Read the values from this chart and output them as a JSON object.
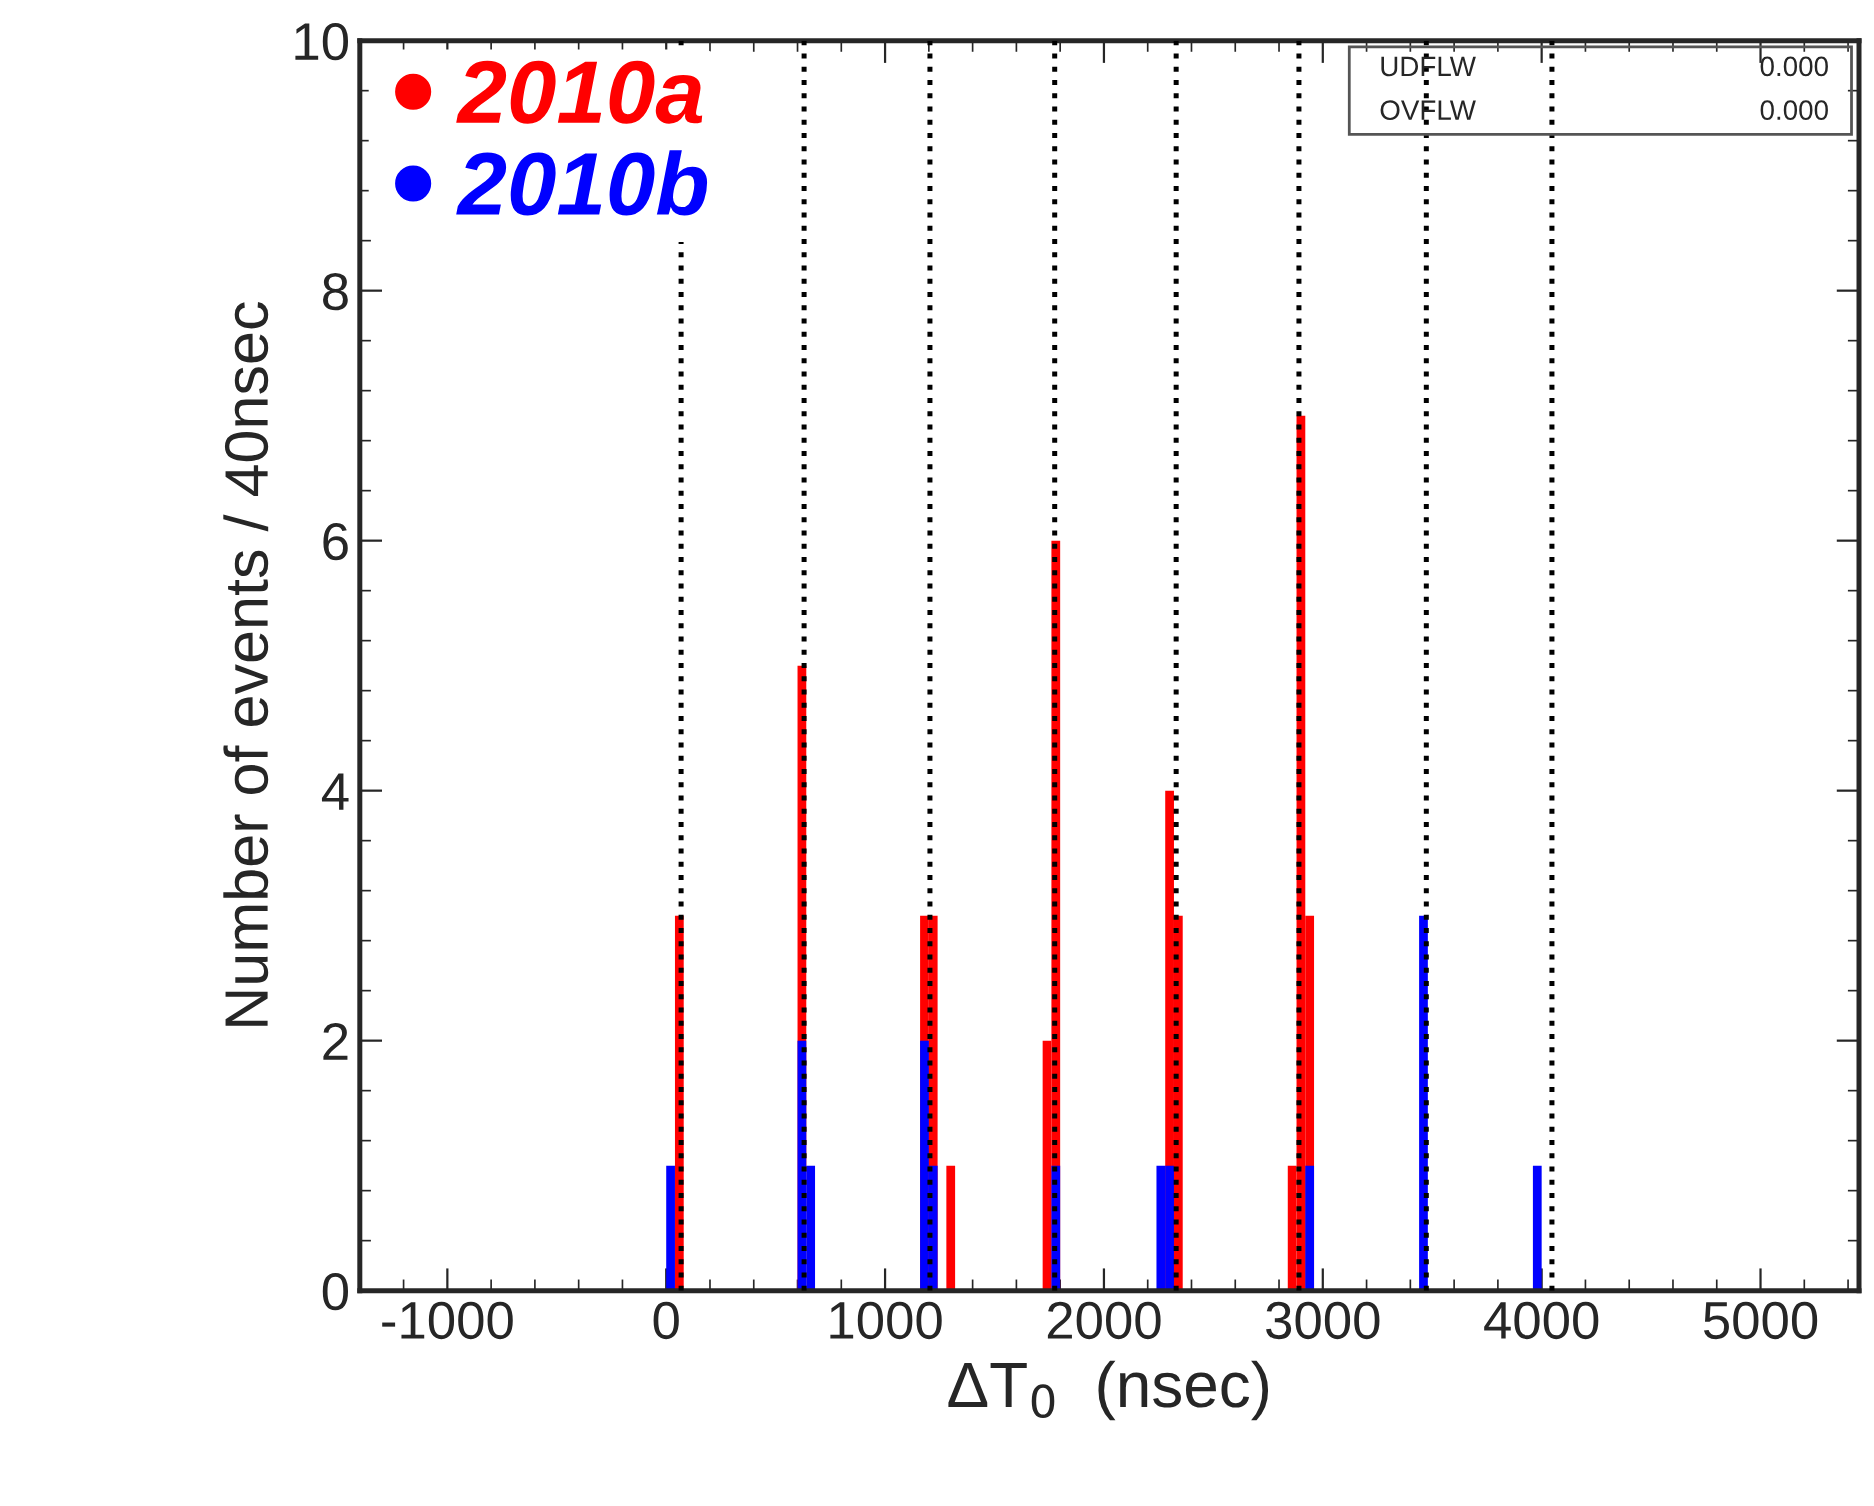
{
  "chart_data": {
    "type": "histogram",
    "xlabel": "ΔT$_{0}$  (nsec)",
    "ylabel": "Number of events / 40nsec",
    "bins": [
      0,
      40,
      80,
      120,
      160,
      200,
      240,
      280,
      320,
      360,
      400,
      440,
      480,
      520,
      560,
      600,
      640,
      680,
      720,
      760,
      800,
      840,
      880,
      920,
      960,
      1000,
      1040,
      1080,
      1120,
      1160,
      1200,
      1240,
      1280,
      1320,
      1360,
      1400,
      1440,
      1480,
      1520,
      1560,
      1600,
      1640,
      1680,
      1720,
      1760,
      1800,
      1840,
      1880,
      1920,
      1960,
      2000,
      2040,
      2080,
      2120,
      2160,
      2200,
      2240,
      2280,
      2320,
      2360,
      2400,
      2440,
      2480,
      2520,
      2560,
      2600,
      2640,
      2680,
      2720,
      2760,
      2800,
      2840,
      2880,
      2920,
      2960,
      3000,
      3040,
      3080,
      3120,
      3160,
      3200,
      3240,
      3280,
      3320,
      3360,
      3400,
      3440,
      3480,
      3520,
      3560,
      3600,
      3640,
      3680,
      3720,
      3760,
      3800,
      3840,
      3880,
      3920,
      3960,
      4000
    ],
    "series": [
      {
        "name": "2010a",
        "color": "#ff0000",
        "values": [
          0,
          3,
          0,
          0,
          0,
          0,
          0,
          0,
          0,
          0,
          0,
          0,
          0,
          0,
          0,
          5,
          0,
          0,
          0,
          0,
          0,
          0,
          0,
          0,
          0,
          0,
          0,
          0,
          0,
          3,
          3,
          0,
          1,
          0,
          0,
          0,
          0,
          0,
          0,
          0,
          0,
          0,
          0,
          2,
          6,
          0,
          0,
          0,
          0,
          0,
          0,
          0,
          0,
          0,
          0,
          0,
          0,
          4,
          3,
          0,
          0,
          0,
          0,
          0,
          0,
          0,
          0,
          0,
          0,
          0,
          0,
          1,
          7,
          3,
          0,
          0,
          0,
          0,
          0,
          0,
          0,
          0,
          0,
          0,
          0,
          0,
          0,
          0,
          0,
          0,
          0,
          0,
          0,
          0,
          0,
          0,
          0,
          0,
          0,
          0
        ]
      },
      {
        "name": "2010b",
        "color": "#0000ff",
        "values": [
          1,
          0,
          0,
          0,
          0,
          0,
          0,
          0,
          0,
          0,
          0,
          0,
          0,
          0,
          0,
          2,
          1,
          0,
          0,
          0,
          0,
          0,
          0,
          0,
          0,
          0,
          0,
          0,
          0,
          2,
          1,
          0,
          0,
          0,
          0,
          0,
          0,
          0,
          0,
          0,
          0,
          0,
          0,
          0,
          1,
          0,
          0,
          0,
          0,
          0,
          0,
          0,
          0,
          0,
          0,
          0,
          1,
          1,
          0,
          0,
          0,
          0,
          0,
          0,
          0,
          0,
          0,
          0,
          0,
          0,
          0,
          0,
          0,
          1,
          0,
          0,
          0,
          0,
          0,
          0,
          0,
          0,
          0,
          0,
          0,
          0,
          3,
          0,
          0,
          0,
          0,
          0,
          0,
          0,
          0,
          0,
          0,
          0,
          0,
          1
        ]
      }
    ],
    "xlim": [
      -1400,
      5450
    ],
    "ylim": [
      0,
      10
    ],
    "xticks": [
      -1000,
      0,
      1000,
      2000,
      3000,
      4000,
      5000
    ],
    "yticks": [
      0,
      2,
      4,
      6,
      8,
      10
    ],
    "ref_lines": [
      {
        "axis": "x",
        "value": 68,
        "color": "#000000",
        "line_style": "dotted"
      },
      {
        "axis": "x",
        "value": 630,
        "color": "#000000",
        "line_style": "dotted"
      },
      {
        "axis": "x",
        "value": 1205,
        "color": "#000000",
        "line_style": "dotted"
      },
      {
        "axis": "x",
        "value": 1775,
        "color": "#000000",
        "line_style": "dotted"
      },
      {
        "axis": "x",
        "value": 2330,
        "color": "#000000",
        "line_style": "dotted"
      },
      {
        "axis": "x",
        "value": 2891,
        "color": "#000000",
        "line_style": "dotted"
      },
      {
        "axis": "x",
        "value": 3473,
        "color": "#000000",
        "line_style": "dotted"
      },
      {
        "axis": "x",
        "value": 4047,
        "color": "#000000",
        "line_style": "dotted"
      }
    ],
    "annotations": [
      "UDFLW",
      "0.000",
      "OVFLW",
      "0.000"
    ],
    "legend": "top left",
    "grid": false
  }
}
